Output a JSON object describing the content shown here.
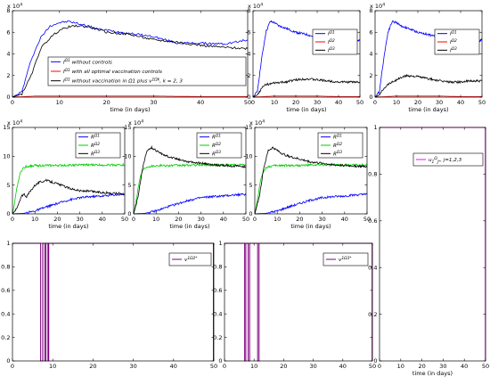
{
  "figure": {
    "panels": [
      {
        "id": "p1",
        "multiplier": "x 10",
        "multiplier_exp": "4",
        "xlabel": "time (in days)",
        "xticks": [
          "0",
          "10",
          "20",
          "30",
          "40",
          "50"
        ],
        "yticks": [
          "0",
          "2",
          "4",
          "6",
          "8"
        ],
        "legend": [
          "I^Ω1 without controls",
          "I^Ω1 with all optimal vaccination controls",
          "I^Ω1 without vaccination in Ω1 plus v^1Ωk, k = 2, 3"
        ]
      },
      {
        "id": "p2",
        "multiplier": "x 10",
        "multiplier_exp": "4",
        "xlabel": "time (in days)",
        "xticks": [
          "0",
          "10",
          "20",
          "30",
          "40",
          "50"
        ],
        "yticks": [
          "0",
          "2",
          "4",
          "6",
          "8"
        ],
        "legend": [
          "I^Ω1",
          "I^Ω2",
          "I^Ω3"
        ]
      },
      {
        "id": "p3",
        "multiplier": "x 10",
        "multiplier_exp": "4",
        "xlabel": "time (in days)",
        "xticks": [
          "0",
          "10",
          "20",
          "30",
          "40",
          "50"
        ],
        "yticks": [
          "0",
          "2",
          "4",
          "6",
          "8"
        ],
        "legend": [
          "I^Ω1",
          "I^Ω2",
          "I^Ω3"
        ]
      },
      {
        "id": "p4",
        "multiplier": "x 10",
        "multiplier_exp": "4",
        "xlabel": "time (in days)",
        "xticks": [
          "0",
          "10",
          "20",
          "30",
          "40",
          "50"
        ],
        "yticks": [
          "0",
          "5",
          "10",
          "15"
        ],
        "legend": [
          "R^Ω1",
          "R^Ω2",
          "R^Ω3"
        ]
      },
      {
        "id": "p5",
        "multiplier": "x 10",
        "multiplier_exp": "4",
        "xlabel": "time (in days)",
        "xticks": [
          "0",
          "10",
          "20",
          "30",
          "40",
          "50"
        ],
        "yticks": [
          "0",
          "5",
          "10",
          "15"
        ],
        "legend": [
          "R^Ω1",
          "R^Ω2",
          "R^Ω3"
        ]
      },
      {
        "id": "p6",
        "multiplier": "x 10",
        "multiplier_exp": "4",
        "xlabel": "time (in days)",
        "xticks": [
          "0",
          "10",
          "20",
          "30",
          "40",
          "50"
        ],
        "yticks": [
          "0",
          "5",
          "10",
          "15"
        ],
        "legend": [
          "R^Ω1",
          "R^Ω2",
          "R^Ω3"
        ]
      },
      {
        "id": "p7",
        "xlabel": "time (in days)",
        "xticks": [
          "0",
          "10",
          "20",
          "30",
          "40",
          "50"
        ],
        "yticks": [
          "0",
          "0.2",
          "0.4",
          "0.6",
          "0.8",
          "1"
        ],
        "legend": [
          "u_1^Ω_j*, j=1,2,3"
        ]
      },
      {
        "id": "p8",
        "xlabel": "",
        "xticks": [
          "0",
          "10",
          "20",
          "30",
          "40",
          "50"
        ],
        "yticks": [
          "0",
          "0.2",
          "0.4",
          "0.6",
          "0.8",
          "1"
        ],
        "legend": [
          "v^1Ω2*"
        ]
      },
      {
        "id": "p9",
        "xlabel": "",
        "xticks": [
          "0",
          "10",
          "20",
          "30",
          "40",
          "50"
        ],
        "yticks": [
          "0",
          "0.2",
          "0.4",
          "0.6",
          "0.8",
          "1"
        ],
        "legend": [
          "v^1Ω3*"
        ]
      }
    ]
  },
  "chart_data": [
    {
      "type": "line",
      "xlim": [
        0,
        50
      ],
      "ylim": [
        0,
        8
      ],
      "y_scale_note": "x 10^4",
      "series": [
        {
          "name": "I^Ω1 without controls",
          "color": "#0000ff",
          "x": [
            0,
            2,
            4,
            6,
            8,
            10,
            12,
            14,
            16,
            18,
            20,
            25,
            30,
            35,
            40,
            45,
            50
          ],
          "y": [
            0,
            0.5,
            3.5,
            5.5,
            6.6,
            6.9,
            7.0,
            6.8,
            6.6,
            6.3,
            6.2,
            5.9,
            5.6,
            5.0,
            5.0,
            4.9,
            5.3
          ]
        },
        {
          "name": "I^Ω1 with all optimal vaccination controls",
          "color": "#ff0000",
          "x": [
            0,
            5,
            10,
            20,
            30,
            40,
            50
          ],
          "y": [
            0,
            0.1,
            0.1,
            0.1,
            0.1,
            0.05,
            0.05
          ]
        },
        {
          "name": "I^Ω1 without vaccination in Ω1 plus v^1Ωk, k = 2, 3",
          "color": "#000000",
          "x": [
            0,
            2,
            4,
            6,
            8,
            10,
            12,
            14,
            16,
            18,
            20,
            25,
            30,
            35,
            40,
            45,
            50
          ],
          "y": [
            0,
            0.3,
            2.0,
            4.5,
            5.5,
            6.2,
            6.5,
            6.6,
            6.5,
            6.3,
            6.0,
            5.8,
            5.3,
            5.1,
            4.8,
            4.6,
            4.5
          ]
        }
      ]
    },
    {
      "type": "line",
      "xlim": [
        0,
        50
      ],
      "ylim": [
        0,
        8
      ],
      "y_scale_note": "x 10^4",
      "series": [
        {
          "name": "I^Ω1",
          "color": "#0000ff",
          "x": [
            0,
            2,
            4,
            6,
            8,
            10,
            12,
            15,
            20,
            25,
            30,
            35,
            40,
            45,
            50
          ],
          "y": [
            0,
            0.5,
            3.5,
            6.0,
            7.0,
            6.9,
            6.6,
            6.4,
            6.0,
            5.8,
            5.5,
            5.0,
            4.9,
            4.8,
            5.3
          ]
        },
        {
          "name": "I^Ω2",
          "color": "#ff0000",
          "x": [
            0,
            10,
            20,
            30,
            40,
            50
          ],
          "y": [
            0,
            0.1,
            0.1,
            0.1,
            0.05,
            0.05
          ]
        },
        {
          "name": "I^Ω3",
          "color": "#000000",
          "x": [
            0,
            2,
            4,
            6,
            8,
            10,
            15,
            20,
            25,
            30,
            35,
            40,
            45,
            50
          ],
          "y": [
            0,
            0.2,
            0.8,
            1.2,
            1.2,
            1.3,
            1.4,
            1.6,
            1.7,
            1.6,
            1.5,
            1.4,
            1.4,
            1.4
          ]
        }
      ]
    },
    {
      "type": "line",
      "xlim": [
        0,
        50
      ],
      "ylim": [
        0,
        8
      ],
      "y_scale_note": "x 10^4",
      "series": [
        {
          "name": "I^Ω1",
          "color": "#0000ff",
          "x": [
            0,
            2,
            4,
            6,
            8,
            10,
            12,
            15,
            20,
            25,
            30,
            35,
            40,
            45,
            50
          ],
          "y": [
            0,
            0.5,
            3.5,
            6.0,
            7.0,
            6.9,
            6.6,
            6.4,
            6.0,
            5.8,
            5.5,
            5.0,
            4.9,
            4.8,
            5.3
          ]
        },
        {
          "name": "I^Ω2",
          "color": "#ff0000",
          "x": [
            0,
            10,
            20,
            30,
            40,
            50
          ],
          "y": [
            0,
            0.1,
            0.1,
            0.1,
            0.05,
            0.05
          ]
        },
        {
          "name": "I^Ω3",
          "color": "#000000",
          "x": [
            0,
            2,
            4,
            6,
            8,
            10,
            12,
            15,
            20,
            25,
            30,
            35,
            40,
            45,
            50
          ],
          "y": [
            0,
            0.2,
            0.8,
            1.2,
            1.4,
            1.6,
            1.8,
            2.0,
            1.9,
            1.7,
            1.5,
            1.4,
            1.4,
            1.5,
            1.5
          ]
        }
      ]
    },
    {
      "type": "line",
      "xlim": [
        0,
        50
      ],
      "ylim": [
        0,
        15
      ],
      "y_scale_note": "x 10^4",
      "series": [
        {
          "name": "R^Ω1",
          "color": "#0000ff",
          "x": [
            0,
            5,
            10,
            15,
            20,
            25,
            30,
            35,
            40,
            45,
            50
          ],
          "y": [
            0,
            0.1,
            0.5,
            1.2,
            1.8,
            2.4,
            2.8,
            3.0,
            3.1,
            3.3,
            3.4
          ]
        },
        {
          "name": "R^Ω2",
          "color": "#00cc00",
          "x": [
            0,
            1,
            2,
            3,
            4,
            5,
            6,
            8,
            10,
            15,
            20,
            30,
            40,
            50
          ],
          "y": [
            0,
            2.0,
            4.5,
            6.5,
            7.5,
            8.0,
            8.2,
            8.3,
            8.4,
            8.4,
            8.4,
            8.5,
            8.5,
            8.5
          ]
        },
        {
          "name": "R^Ω3",
          "color": "#000000",
          "x": [
            0,
            2,
            4,
            5,
            6,
            8,
            10,
            12,
            15,
            18,
            20,
            25,
            30,
            35,
            40,
            45,
            50
          ],
          "y": [
            0,
            1.0,
            3.0,
            3.5,
            2.8,
            4.0,
            5.0,
            5.5,
            5.8,
            5.5,
            5.2,
            4.5,
            4.0,
            3.9,
            3.7,
            3.6,
            3.5
          ]
        }
      ]
    },
    {
      "type": "line",
      "xlim": [
        0,
        50
      ],
      "ylim": [
        0,
        15
      ],
      "y_scale_note": "x 10^4",
      "series": [
        {
          "name": "R^Ω1",
          "color": "#0000ff",
          "x": [
            0,
            5,
            10,
            15,
            20,
            25,
            30,
            35,
            40,
            45,
            50
          ],
          "y": [
            0,
            0.1,
            0.5,
            1.2,
            1.8,
            2.4,
            2.8,
            3.0,
            3.1,
            3.3,
            3.4
          ]
        },
        {
          "name": "R^Ω2",
          "color": "#00cc00",
          "x": [
            0,
            1,
            2,
            3,
            4,
            5,
            6,
            8,
            10,
            15,
            20,
            30,
            40,
            50
          ],
          "y": [
            0,
            2.0,
            4.5,
            6.5,
            7.5,
            8.0,
            8.2,
            8.3,
            8.4,
            8.4,
            8.4,
            8.5,
            8.5,
            8.5
          ]
        },
        {
          "name": "R^Ω3",
          "color": "#000000",
          "x": [
            0,
            2,
            4,
            6,
            8,
            10,
            12,
            15,
            20,
            25,
            30,
            35,
            40,
            45,
            50
          ],
          "y": [
            0,
            3.0,
            8.0,
            11.0,
            11.5,
            11.0,
            10.5,
            10.0,
            9.5,
            9.0,
            8.8,
            8.5,
            8.4,
            8.3,
            8.2
          ]
        }
      ]
    },
    {
      "type": "line",
      "xlim": [
        0,
        50
      ],
      "ylim": [
        0,
        15
      ],
      "y_scale_note": "x 10^4",
      "series": [
        {
          "name": "R^Ω1",
          "color": "#0000ff",
          "x": [
            0,
            5,
            10,
            15,
            20,
            25,
            30,
            35,
            40,
            45,
            50
          ],
          "y": [
            0,
            0.1,
            0.5,
            1.2,
            1.8,
            2.4,
            2.8,
            3.0,
            3.1,
            3.3,
            3.4
          ]
        },
        {
          "name": "R^Ω2",
          "color": "#00cc00",
          "x": [
            0,
            1,
            2,
            3,
            4,
            5,
            6,
            8,
            10,
            15,
            20,
            30,
            40,
            50
          ],
          "y": [
            0,
            2.0,
            4.5,
            6.5,
            7.5,
            8.0,
            8.2,
            8.3,
            8.4,
            8.4,
            8.4,
            8.5,
            8.5,
            8.5
          ]
        },
        {
          "name": "R^Ω3",
          "color": "#000000",
          "x": [
            0,
            2,
            4,
            6,
            8,
            10,
            12,
            15,
            20,
            25,
            30,
            35,
            40,
            45,
            50
          ],
          "y": [
            0,
            3.0,
            8.0,
            11.0,
            11.5,
            11.0,
            10.5,
            10.0,
            9.5,
            9.0,
            8.8,
            8.5,
            8.4,
            8.3,
            8.2
          ]
        }
      ]
    },
    {
      "type": "line",
      "xlim": [
        0,
        50
      ],
      "ylim": [
        0,
        1
      ],
      "series": [
        {
          "name": "u_1^Ω_j*, j=1,2,3",
          "color": "#ff00ff",
          "x": [
            0,
            49.9,
            49.9,
            50
          ],
          "y": [
            1,
            1,
            0,
            0
          ]
        }
      ]
    },
    {
      "type": "line",
      "xlim": [
        0,
        50
      ],
      "ylim": [
        0,
        1
      ],
      "series": [
        {
          "name": "v^1Ω2*",
          "color": "#800080",
          "x": [
            0,
            7.0,
            7.0,
            7.5,
            7.5,
            8.0,
            8.0,
            8.3,
            8.3,
            8.8,
            8.8,
            9.0,
            9.0,
            49.9,
            49.9,
            50
          ],
          "y": [
            1,
            1,
            0,
            0,
            1,
            1,
            0,
            0,
            1,
            1,
            0,
            0,
            1,
            1,
            0,
            0
          ]
        }
      ]
    },
    {
      "type": "line",
      "xlim": [
        0,
        50
      ],
      "ylim": [
        0,
        1
      ],
      "series": [
        {
          "name": "v^1Ω3*",
          "color": "#800080",
          "x": [
            0,
            6.8,
            6.8,
            7.2,
            7.2,
            8.0,
            8.0,
            8.5,
            8.5,
            11.2,
            11.2,
            11.7,
            11.7,
            49.9,
            49.9,
            50
          ],
          "y": [
            1,
            1,
            0,
            0,
            1,
            1,
            0,
            0,
            1,
            1,
            0,
            0,
            1,
            1,
            0,
            0
          ]
        }
      ]
    }
  ]
}
